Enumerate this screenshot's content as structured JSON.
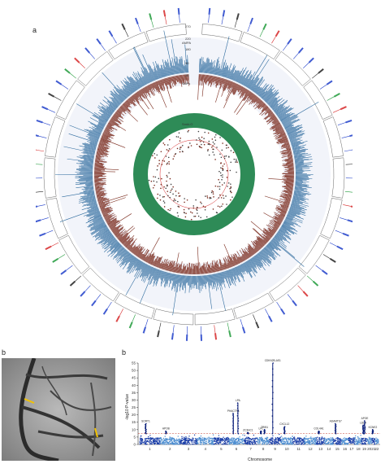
{
  "panels": {
    "a": "a",
    "b_left": "b",
    "b_right": "b"
  },
  "circos": {
    "track_labels": [
      "AMPA",
      "SNPs",
      "SmkLO"
    ],
    "radial_ticks": [
      "270",
      "220",
      "180",
      "90",
      "30"
    ],
    "top_marker_label": "0",
    "colors": {
      "outer_bars": "#2e6b9e",
      "inner_bars": "#7a2a1c",
      "green_ring": "#2e8b57",
      "threshold": "#d62728",
      "gene_blue": "#1f3ec9",
      "gene_green": "#1f9a3a",
      "gene_red": "#d62728",
      "gene_black": "#222222"
    }
  },
  "chart_data": [
    {
      "type": "scatter",
      "subtype": "circular-manhattan",
      "description_tracks": [
        "outer association bars",
        "inner association bars",
        "green density ring"
      ]
    },
    {
      "type": "scatter",
      "subtype": "manhattan",
      "xlabel": "Chromosome",
      "ylabel": "-log10 P-value",
      "ylim": [
        0,
        55
      ],
      "yticks": [
        0,
        5,
        10,
        15,
        20,
        25,
        30,
        35,
        40,
        45,
        50,
        55
      ],
      "x_categories": [
        "1",
        "2",
        "3",
        "4",
        "5",
        "6",
        "7",
        "8",
        "9",
        "10",
        "11",
        "12",
        "13",
        "14",
        "15",
        "16",
        "17",
        "18",
        "19",
        "20",
        "21",
        "22"
      ],
      "threshold": 7.3,
      "colors": {
        "odd": "#1c3fa8",
        "even": "#4f8fd1",
        "highlight": "#0b1f7a",
        "threshold": "#c0392b"
      },
      "peaks": [
        {
          "chr": "1",
          "value": 14,
          "label": "SORT1"
        },
        {
          "chr": "2",
          "value": 9,
          "label": "APOB"
        },
        {
          "chr": "6",
          "value": 21,
          "label": "PHACTR1"
        },
        {
          "chr": "6",
          "value": 28,
          "label": "LPA"
        },
        {
          "chr": "7",
          "value": 8,
          "label": "ZC3HC1"
        },
        {
          "chr": "8",
          "value": 9,
          "label": "LPL"
        },
        {
          "chr": "8",
          "value": 10,
          "label": "TRIB1"
        },
        {
          "chr": "9",
          "value": 55,
          "label": "CDKN2B-AS1"
        },
        {
          "chr": "10",
          "value": 12,
          "label": "CXCL12"
        },
        {
          "chr": "13",
          "value": 9,
          "label": "COL4A1"
        },
        {
          "chr": "15",
          "value": 14,
          "label": "ADAMTS7"
        },
        {
          "chr": "19",
          "value": 13,
          "label": "LDLR"
        },
        {
          "chr": "19",
          "value": 16,
          "label": "APOE"
        },
        {
          "chr": "21",
          "value": 10,
          "label": "KCNE2"
        }
      ]
    }
  ]
}
